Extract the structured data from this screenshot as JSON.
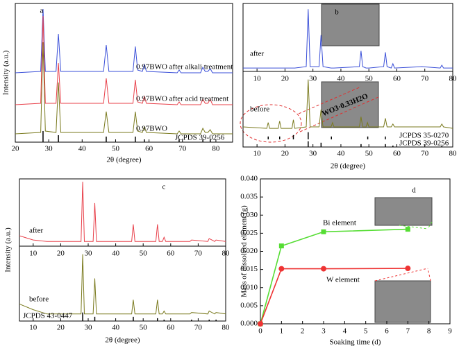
{
  "chart_data": [
    {
      "type": "line",
      "label": "a",
      "xlabel": "2θ (degree)",
      "ylabel": "Intensity (a.u.)",
      "xlim": [
        20,
        85
      ],
      "xticks": [
        20,
        30,
        40,
        50,
        60,
        70,
        80
      ],
      "ylim": [
        0,
        100
      ],
      "x": [
        20,
        27.6,
        28.3,
        29,
        32.2,
        32.9,
        33.6,
        46.4,
        47.2,
        48,
        55.2,
        55.9,
        56.6,
        58,
        58.6,
        59.2,
        68.4,
        69,
        69.6,
        75.4,
        76.1,
        76.8,
        77.6,
        78.3,
        79,
        85
      ],
      "series": [
        {
          "name": "0.97BWO after alkali treatment",
          "color": "#3a4fd8",
          "values": [
            50,
            51,
            96,
            51,
            51,
            78,
            51,
            51,
            70,
            51,
            51,
            69,
            52,
            51,
            56,
            51,
            50,
            52,
            50,
            50,
            54,
            51,
            51,
            53,
            50,
            50
          ]
        },
        {
          "name": "0.97BWO after acid treatment",
          "color": "#e8404a",
          "values": [
            27,
            28,
            91,
            28,
            28,
            57,
            28,
            28,
            46,
            28,
            28,
            45,
            29,
            28,
            33,
            28,
            27,
            29,
            27,
            27,
            31,
            28,
            28,
            31,
            27,
            27
          ]
        },
        {
          "name": "0.97BWO",
          "color": "#7a7a1e",
          "values": [
            6,
            7,
            72,
            8,
            7,
            43,
            7,
            7,
            22,
            7,
            7,
            22,
            8,
            7,
            11,
            7,
            6,
            8,
            6,
            6,
            10,
            7,
            7,
            9,
            6,
            6
          ]
        }
      ],
      "references": [
        {
          "name": "JCPDS 39-0256",
          "positions": [
            28.3,
            32.9,
            47.2,
            55.9,
            58.6,
            69,
            76.1,
            78.3
          ],
          "heights": [
            8,
            5,
            4,
            4,
            2,
            2,
            2,
            2
          ]
        }
      ]
    },
    {
      "type": "line",
      "label": "b",
      "xlabel": "2θ (degree)",
      "xlim": [
        5,
        80
      ],
      "xticks": [
        10,
        20,
        30,
        40,
        50,
        60,
        70,
        80
      ],
      "ylim": [
        0,
        100
      ],
      "x": [
        5,
        13.5,
        14,
        14.5,
        17.6,
        18.1,
        18.6,
        22.5,
        23,
        23.5,
        27.6,
        28.3,
        29,
        32.2,
        32.9,
        33.6,
        36.5,
        37,
        37.5,
        46.6,
        47.2,
        47.8,
        49,
        49.5,
        50,
        55.3,
        55.9,
        56.5,
        58,
        58.6,
        59.2,
        69,
        75.5,
        76.1,
        76.7,
        80
      ],
      "series": [
        {
          "name": "after",
          "color": "#3a4fd8",
          "values": [
            55,
            55,
            55,
            55,
            55,
            55,
            55,
            55,
            55,
            55,
            56,
            96,
            56,
            56,
            78,
            56,
            55,
            55,
            55,
            56,
            67,
            56,
            55,
            55,
            55,
            56,
            66,
            56,
            55,
            58,
            55,
            56,
            55,
            57,
            55,
            55
          ]
        },
        {
          "name": "before",
          "color": "#7a7a1e",
          "values": [
            14,
            13,
            17,
            13,
            13,
            18,
            13,
            13,
            19,
            13,
            14,
            47,
            14,
            14,
            26,
            14,
            14,
            17,
            14,
            14,
            21,
            14,
            14,
            17,
            14,
            14,
            20,
            14,
            14,
            16,
            14,
            14,
            14,
            16,
            14,
            13
          ]
        }
      ],
      "references": [
        {
          "name": "JCPDS 35-0270",
          "positions": [
            14,
            18.1,
            23,
            28.3,
            36.6,
            49.6,
            55.9
          ],
          "heights": [
            2,
            2,
            3,
            5,
            2,
            2,
            2
          ]
        },
        {
          "name": "JCPDS 39-0256",
          "positions": [
            28.3,
            32.9,
            47.2,
            55.9,
            58.6,
            76.1
          ],
          "heights": [
            4,
            3,
            2,
            2,
            1,
            1
          ]
        }
      ],
      "annotation": "WO3·0.33H2O"
    },
    {
      "type": "line",
      "label": "c",
      "xlabel": "2θ (degree)",
      "ylabel": "Intensity (a.u.)",
      "xlim": [
        5,
        80
      ],
      "xticks": [
        10,
        20,
        30,
        40,
        50,
        60,
        70,
        80
      ],
      "ylim": [
        0,
        100
      ],
      "x": [
        5,
        10,
        15,
        27.4,
        28,
        28.6,
        31.8,
        32.4,
        33,
        45.8,
        46.4,
        47,
        54.6,
        55.2,
        55.8,
        57,
        57.6,
        58.2,
        67,
        67.6,
        73.5,
        74,
        76,
        76.5,
        80
      ],
      "series": [
        {
          "name": "after",
          "color": "#e8404a",
          "values": [
            60,
            57,
            56,
            56,
            98,
            56,
            56,
            83,
            56,
            56,
            68,
            56,
            56,
            68,
            56,
            56,
            59,
            56,
            56,
            57,
            56,
            58,
            56,
            57,
            56
          ]
        },
        {
          "name": "before",
          "color": "#7a7a1e",
          "values": [
            12,
            8,
            5,
            5,
            47,
            5,
            5,
            30,
            5,
            5,
            15,
            5,
            5,
            15,
            5,
            5,
            7,
            5,
            5,
            6,
            5,
            7,
            5,
            6,
            5
          ]
        }
      ],
      "references": [
        {
          "name": "JCPDS 43-0447",
          "positions": [
            28,
            32.4,
            46.4,
            55.2,
            57.6,
            67.6,
            74,
            76.5
          ],
          "heights": [
            6,
            3,
            3,
            2,
            1,
            1,
            1,
            1
          ]
        }
      ]
    },
    {
      "type": "line",
      "label": "d",
      "xlabel": "Soaking time (d)",
      "ylabel": "Mass of dissolved element (g)",
      "xlim": [
        0,
        9
      ],
      "xticks": [
        0,
        1,
        2,
        3,
        4,
        5,
        6,
        7,
        8,
        9
      ],
      "ylim": [
        0,
        0.04
      ],
      "yticks": [
        {
          "value": 0,
          "label": "0.000"
        },
        0.005,
        {
          "value": 0.01,
          "label": "0.010"
        },
        0.015,
        {
          "value": 0.02,
          "label": "0.020"
        },
        0.025,
        {
          "value": 0.03,
          "label": "0.030"
        },
        0.035,
        {
          "value": 0.04,
          "label": "0.040"
        }
      ],
      "x": [
        0,
        1,
        3,
        7
      ],
      "series": [
        {
          "name": "Bi element",
          "color": "#55dd33",
          "marker": "square",
          "values": [
            0,
            0.0215,
            0.0254,
            0.0261
          ]
        },
        {
          "name": "W element",
          "color": "#ee3333",
          "marker": "circle",
          "values": [
            0,
            0.0152,
            0.0152,
            0.0153
          ]
        }
      ]
    }
  ]
}
